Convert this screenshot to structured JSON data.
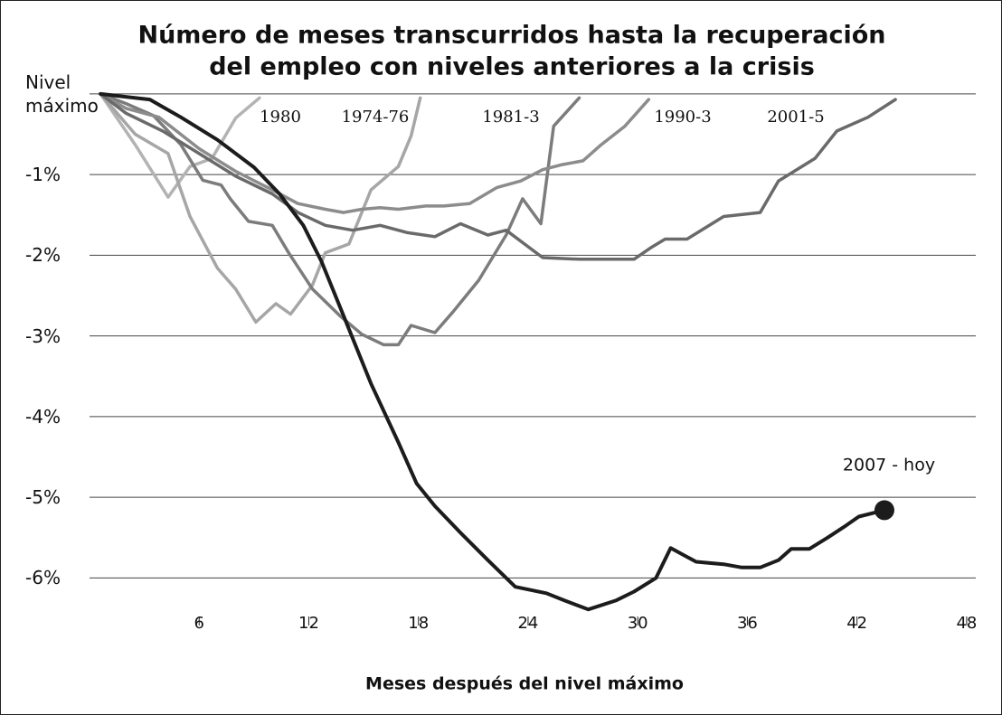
{
  "chart_data": {
    "type": "line",
    "title": [
      "Número de meses transcurridos hasta la recuperación",
      "del empleo con niveles anteriores a la crisis"
    ],
    "xlabel": "Meses después del nivel máximo",
    "xlim": [
      0,
      48.5
    ],
    "xticks": [
      6,
      12,
      18,
      24,
      30,
      36,
      42,
      48
    ],
    "ylim": [
      -6.5,
      0.2
    ],
    "yticks": [
      {
        "value": 0,
        "label": "Nivel máximo"
      },
      {
        "value": -1,
        "label": "-1%"
      },
      {
        "value": -2,
        "label": "-2%"
      },
      {
        "value": -3,
        "label": "-3%"
      },
      {
        "value": -4,
        "label": "-4%"
      },
      {
        "value": -5,
        "label": "-5%"
      },
      {
        "value": -6,
        "label": "-6%"
      }
    ],
    "grid": true,
    "series": [
      {
        "name": "1980",
        "color": "#b3b3b3",
        "x": [
          0.6,
          2.5,
          4.3,
          5.5,
          6.7,
          8.0,
          9.3
        ],
        "values": [
          0,
          -0.63,
          -1.28,
          -0.9,
          -0.8,
          -0.3,
          -0.05
        ]
      },
      {
        "name": "1974-76",
        "color": "#a6a6a6",
        "x": [
          0.6,
          2.5,
          4.3,
          5.5,
          7.0,
          8.0,
          9.1,
          10.2,
          11.0,
          12.2,
          12.9,
          14.2,
          15.4,
          16.9,
          17.6,
          18.1
        ],
        "values": [
          0,
          -0.5,
          -0.74,
          -1.52,
          -2.16,
          -2.42,
          -2.83,
          -2.6,
          -2.73,
          -2.37,
          -1.97,
          -1.86,
          -1.19,
          -0.9,
          -0.52,
          -0.05
        ]
      },
      {
        "name": "1981-3",
        "color": "#7c7c7c",
        "x": [
          0.6,
          2.0,
          3.5,
          5.0,
          6.2,
          7.2,
          7.7,
          8.7,
          10.0,
          10.9,
          12.2,
          13.7,
          14.9,
          16.1,
          16.9,
          17.6,
          18.9,
          19.9,
          21.3,
          22.8,
          23.7,
          24.7,
          25.4,
          26.8
        ],
        "values": [
          0,
          -0.12,
          -0.27,
          -0.63,
          -1.07,
          -1.13,
          -1.3,
          -1.58,
          -1.63,
          -1.97,
          -2.42,
          -2.75,
          -2.98,
          -3.11,
          -3.11,
          -2.87,
          -2.96,
          -2.7,
          -2.31,
          -1.75,
          -1.3,
          -1.61,
          -0.4,
          -0.05
        ]
      },
      {
        "name": "1990-3",
        "color": "#8c8c8c",
        "x": [
          0.6,
          2.0,
          3.8,
          6.0,
          8.0,
          10.0,
          11.4,
          12.9,
          13.9,
          14.9,
          15.9,
          16.9,
          18.4,
          19.4,
          20.8,
          22.3,
          23.6,
          24.8,
          25.8,
          27.0,
          28.0,
          29.3,
          30.6
        ],
        "values": [
          0,
          -0.18,
          -0.29,
          -0.68,
          -0.96,
          -1.19,
          -1.36,
          -1.43,
          -1.47,
          -1.43,
          -1.41,
          -1.43,
          -1.39,
          -1.39,
          -1.36,
          -1.16,
          -1.08,
          -0.94,
          -0.88,
          -0.83,
          -0.63,
          -0.4,
          -0.07
        ]
      },
      {
        "name": "2001-5",
        "color": "#6a6a6a",
        "x": [
          0.6,
          2.0,
          4.0,
          6.0,
          8.0,
          10.0,
          11.4,
          12.9,
          14.4,
          15.9,
          17.4,
          18.9,
          20.3,
          21.8,
          22.8,
          24.8,
          26.8,
          28.8,
          29.8,
          30.7,
          31.5,
          32.7,
          34.7,
          36.7,
          37.7,
          39.7,
          40.9,
          42.6,
          44.1
        ],
        "values": [
          0,
          -0.24,
          -0.46,
          -0.74,
          -1.02,
          -1.24,
          -1.47,
          -1.63,
          -1.69,
          -1.63,
          -1.72,
          -1.77,
          -1.61,
          -1.75,
          -1.69,
          -2.03,
          -2.05,
          -2.05,
          -2.05,
          -1.91,
          -1.8,
          -1.8,
          -1.52,
          -1.47,
          -1.08,
          -0.8,
          -0.46,
          -0.29,
          -0.07
        ]
      },
      {
        "name": "2007 - hoy",
        "color": "#1c1c1c",
        "x": [
          0.6,
          3.3,
          5.0,
          7.0,
          9.0,
          10.4,
          11.7,
          12.7,
          13.9,
          15.4,
          16.9,
          17.9,
          18.9,
          20.3,
          21.8,
          23.3,
          25.0,
          26.0,
          27.3,
          28.8,
          29.8,
          31.0,
          31.8,
          33.2,
          34.7,
          35.7,
          36.7,
          37.7,
          38.4,
          39.4,
          40.4,
          41.4,
          42.1,
          43.5
        ],
        "values": [
          0,
          -0.07,
          -0.29,
          -0.57,
          -0.91,
          -1.24,
          -1.63,
          -2.08,
          -2.75,
          -3.59,
          -4.32,
          -4.83,
          -5.11,
          -5.44,
          -5.78,
          -6.11,
          -6.19,
          -6.28,
          -6.39,
          -6.28,
          -6.17,
          -6.0,
          -5.63,
          -5.8,
          -5.83,
          -5.87,
          -5.87,
          -5.78,
          -5.64,
          -5.64,
          -5.5,
          -5.35,
          -5.24,
          -5.16
        ]
      }
    ]
  }
}
